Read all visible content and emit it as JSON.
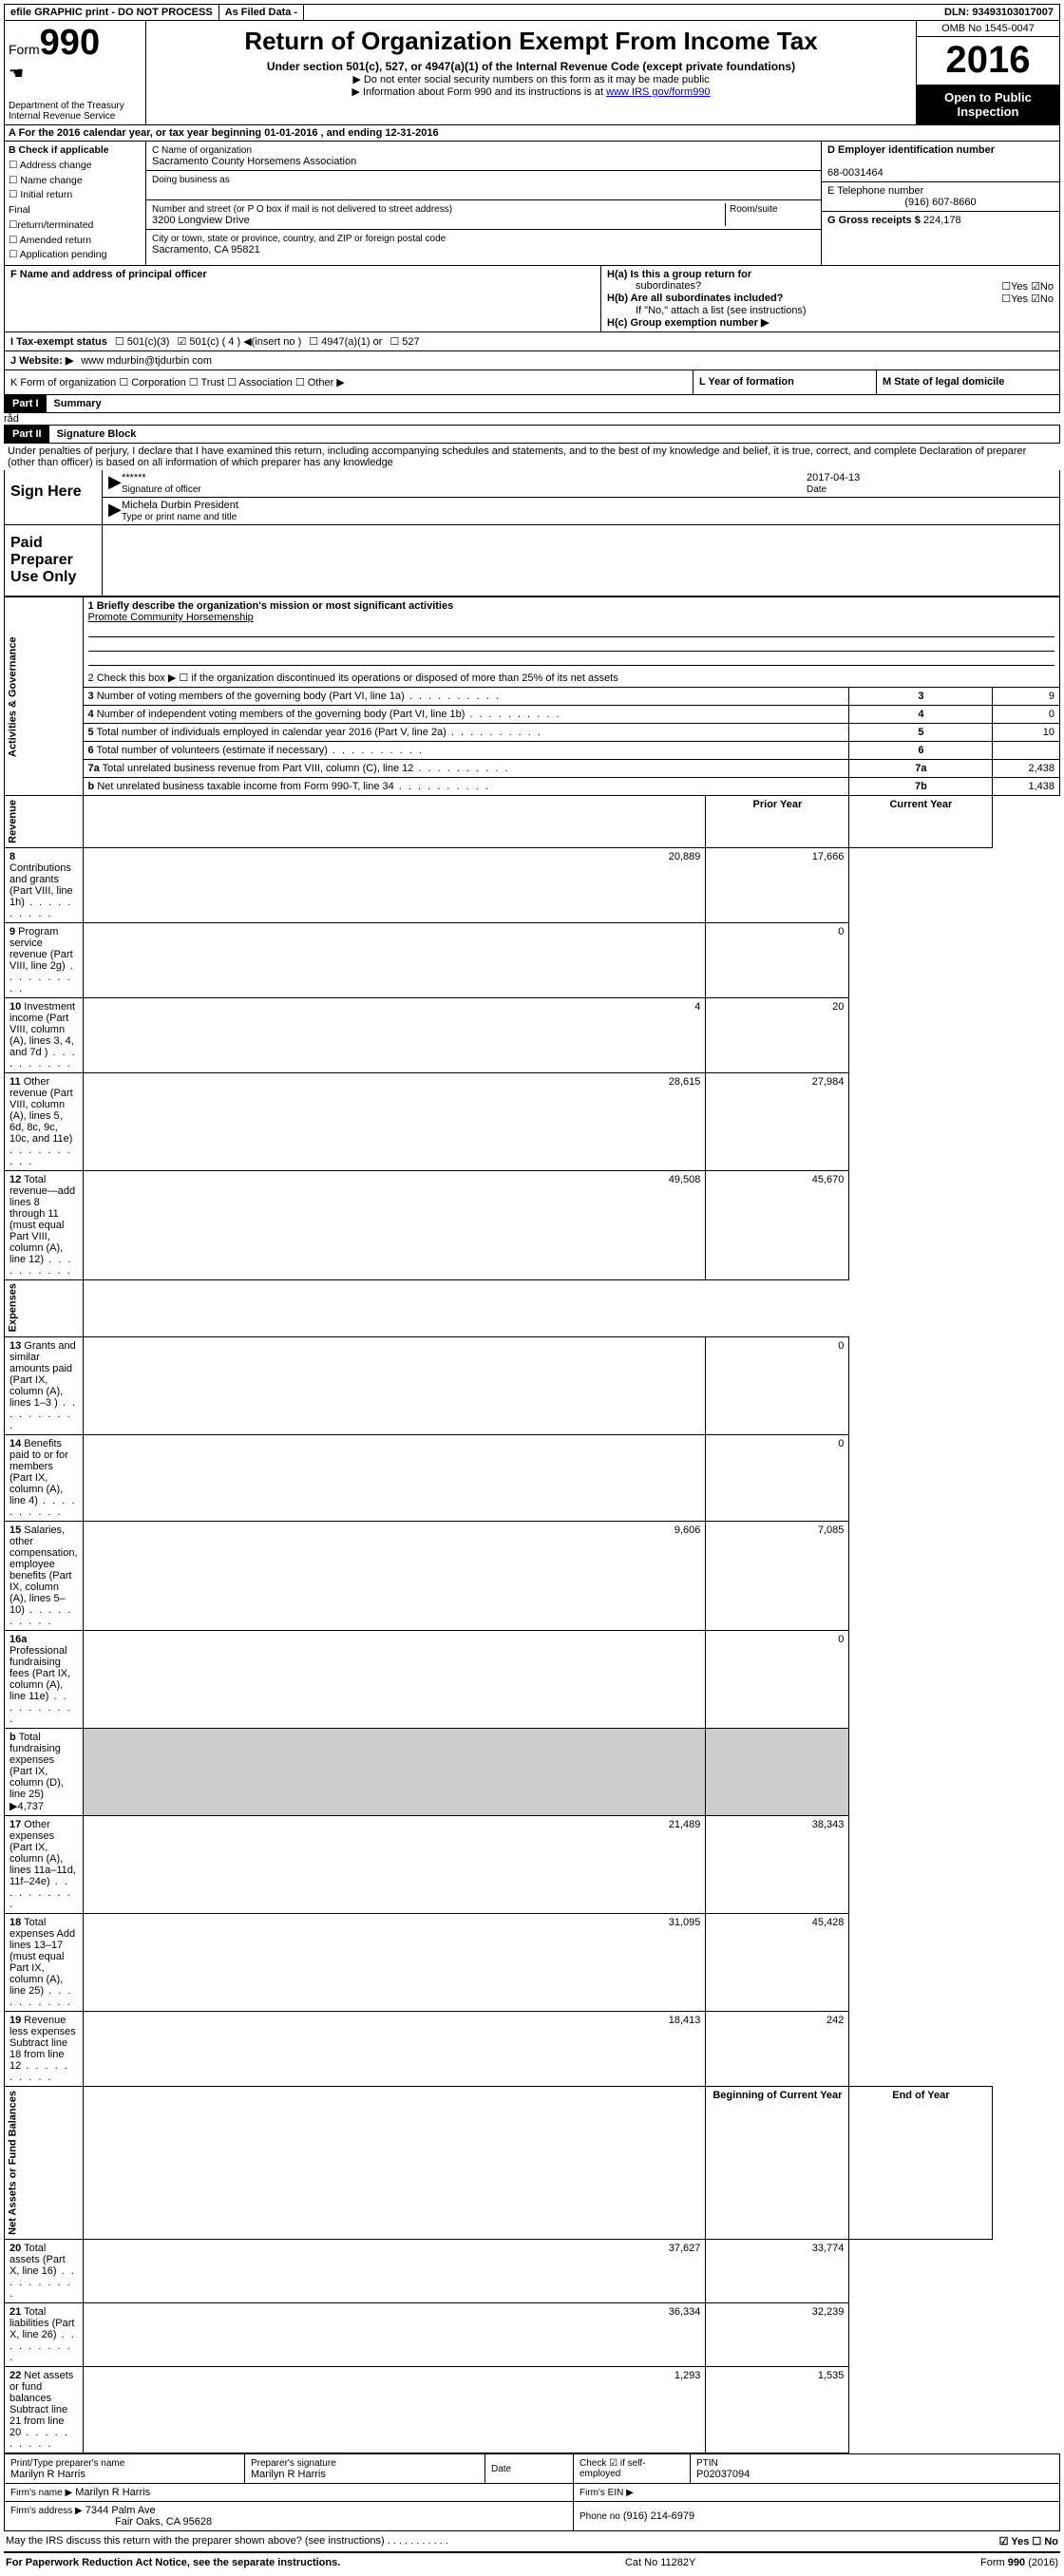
{
  "topbar": {
    "efile": "efile GRAPHIC print - DO NOT PROCESS",
    "asfiled": "As Filed Data -",
    "dln_label": "DLN:",
    "dln": "93493103017007"
  },
  "header": {
    "form_prefix": "Form",
    "form_no": "990",
    "dept1": "Department of the Treasury",
    "dept2": "Internal Revenue Service",
    "title": "Return of Organization Exempt From Income Tax",
    "subtitle": "Under section 501(c), 527, or 4947(a)(1) of the Internal Revenue Code (except private foundations)",
    "note1": "▶ Do not enter social security numbers on this form as it may be made public",
    "note2_pre": "▶ Information about Form 990 and its instructions is at ",
    "note2_link": "www IRS gov/form990",
    "omb": "OMB No  1545-0047",
    "year": "2016",
    "inspect1": "Open to Public",
    "inspect2": "Inspection"
  },
  "rowA": {
    "text": "A  For the 2016 calendar year, or tax year beginning 01-01-2016   , and ending 12-31-2016"
  },
  "secB": {
    "hdr": "B Check if applicable",
    "c1": "☐ Address change",
    "c2": "☐ Name change",
    "c3": "☐ Initial return",
    "c4": "   Final",
    "c4b": "☐return/terminated",
    "c5": "☐ Amended return",
    "c6": "☐ Application pending",
    "c_lbl": "C Name of organization",
    "c_val": "Sacramento County Horsemens Association",
    "dba_lbl": "Doing business as",
    "addr_lbl": "Number and street (or P O  box if mail is not delivered to street address)",
    "room_lbl": "Room/suite",
    "addr_val": "3200 Longview Drive",
    "city_lbl": "City or town, state or province, country, and ZIP or foreign postal code",
    "city_val": "Sacramento, CA  95821",
    "d_lbl": "D Employer identification number",
    "d_val": "68-0031464",
    "e_lbl": "E Telephone number",
    "e_val": "(916) 607-8660",
    "g_lbl": "G Gross receipts $",
    "g_val": "224,178"
  },
  "rowF": {
    "f_lbl": "F  Name and address of principal officer",
    "ha": "H(a)  Is this a group return for",
    "ha2": "subordinates?",
    "ha_ans": "☐Yes ☑No",
    "hb": "H(b) Are all subordinates included?",
    "hb_ans": "☐Yes ☑No",
    "hb_note": "If \"No,\" attach a list  (see instructions)",
    "hc": "H(c)  Group exemption number ▶"
  },
  "rowI": {
    "lbl": "I   Tax-exempt status",
    "o1": "☐ 501(c)(3)",
    "o2": "☑ 501(c) ( 4 ) ◀(insert no )",
    "o3": "☐ 4947(a)(1) or",
    "o4": "☐ 527"
  },
  "rowJ": {
    "lbl": "J   Website: ▶",
    "val": "www mdurbin@tjdurbin com"
  },
  "rowK": {
    "k": "K Form of organization   ☐ Corporation  ☐ Trust  ☐ Association  ☐ Other ▶",
    "l": "L Year of formation",
    "m": "M State of legal domicile"
  },
  "part1": {
    "hdr": "Part I",
    "title": "Summary",
    "q1_lbl": "1 Briefly describe the organization's mission or most significant activities",
    "q1_val": "Promote Community Horsemenship",
    "q2": "2   Check this box ▶ ☐  if the organization discontinued its operations or disposed of more than 25% of its net assets",
    "rows_ag": [
      {
        "n": "3",
        "t": "Number of voting members of the governing body (Part VI, line 1a)",
        "ln": "3",
        "v": "9"
      },
      {
        "n": "4",
        "t": "Number of independent voting members of the governing body (Part VI, line 1b)",
        "ln": "4",
        "v": "0"
      },
      {
        "n": "5",
        "t": "Total number of individuals employed in calendar year 2016 (Part V, line 2a)",
        "ln": "5",
        "v": "10"
      },
      {
        "n": "6",
        "t": "Total number of volunteers (estimate if necessary)",
        "ln": "6",
        "v": ""
      },
      {
        "n": "7a",
        "t": "Total unrelated business revenue from Part VIII, column (C), line 12",
        "ln": "7a",
        "v": "2,438"
      },
      {
        "n": "b",
        "t": "Net unrelated business taxable income from Form 990-T, line 34",
        "ln": "7b",
        "v": "1,438"
      }
    ],
    "col_prior": "Prior Year",
    "col_curr": "Current Year",
    "col_beg": "Beginning of Current Year",
    "col_end": "End of Year",
    "rev_lbl": "Revenue",
    "exp_lbl": "Expenses",
    "ag_lbl": "Activities & Governance",
    "na_lbl": "Net Assets or Fund Balances",
    "rows_rev": [
      {
        "n": "8",
        "t": "Contributions and grants (Part VIII, line 1h)",
        "p": "20,889",
        "c": "17,666"
      },
      {
        "n": "9",
        "t": "Program service revenue (Part VIII, line 2g)",
        "p": "",
        "c": "0"
      },
      {
        "n": "10",
        "t": "Investment income (Part VIII, column (A), lines 3, 4, and 7d )",
        "p": "4",
        "c": "20"
      },
      {
        "n": "11",
        "t": "Other revenue (Part VIII, column (A), lines 5, 6d, 8c, 9c, 10c, and 11e)",
        "p": "28,615",
        "c": "27,984"
      },
      {
        "n": "12",
        "t": "Total revenue—add lines 8 through 11 (must equal Part VIII, column (A), line 12)",
        "p": "49,508",
        "c": "45,670"
      }
    ],
    "rows_exp": [
      {
        "n": "13",
        "t": "Grants and similar amounts paid (Part IX, column (A), lines 1–3 )",
        "p": "",
        "c": "0"
      },
      {
        "n": "14",
        "t": "Benefits paid to or for members (Part IX, column (A), line 4)",
        "p": "",
        "c": "0"
      },
      {
        "n": "15",
        "t": "Salaries, other compensation, employee benefits (Part IX, column (A), lines 5–10)",
        "p": "9,606",
        "c": "7,085"
      },
      {
        "n": "16a",
        "t": "Professional fundraising fees (Part IX, column (A), line 11e)",
        "p": "",
        "c": "0"
      },
      {
        "n": "b",
        "t": "Total fundraising expenses (Part IX, column (D), line 25) ▶4,737",
        "p": "—",
        "c": "—"
      },
      {
        "n": "17",
        "t": "Other expenses (Part IX, column (A), lines 11a–11d, 11f–24e)",
        "p": "21,489",
        "c": "38,343"
      },
      {
        "n": "18",
        "t": "Total expenses  Add lines 13–17 (must equal Part IX, column (A), line 25)",
        "p": "31,095",
        "c": "45,428"
      },
      {
        "n": "19",
        "t": "Revenue less expenses  Subtract line 18 from line 12",
        "p": "18,413",
        "c": "242"
      }
    ],
    "rows_na": [
      {
        "n": "20",
        "t": "Total assets (Part X, line 16)",
        "p": "37,627",
        "c": "33,774"
      },
      {
        "n": "21",
        "t": "Total liabilities (Part X, line 26)",
        "p": "36,334",
        "c": "32,239"
      },
      {
        "n": "22",
        "t": "Net assets or fund balances  Subtract line 21 from line 20",
        "p": "1,293",
        "c": "1,535"
      }
    ]
  },
  "part2": {
    "hdr": "Part II",
    "title": "Signature Block",
    "perjury": "Under penalties of perjury, I declare that I have examined this return, including accompanying schedules and statements, and to the best of my knowledge and belief, it is true, correct, and complete  Declaration of preparer (other than officer) is based on all information of which preparer has any knowledge",
    "sign_here": "Sign Here",
    "stars": "******",
    "sig_officer": "Signature of officer",
    "date_lbl": "Date",
    "date_val": "2017-04-13",
    "name_title": "Michela Durbin President",
    "type_name": "Type or print name and title",
    "paid": "Paid Preparer Use Only",
    "prep_name_lbl": "Print/Type preparer's name",
    "prep_name": "Marilyn R Harris",
    "prep_sig_lbl": "Preparer's signature",
    "prep_sig": "Marilyn R Harris",
    "prep_date_lbl": "Date",
    "check_lbl": "Check ☑ if self-employed",
    "ptin_lbl": "PTIN",
    "ptin": "P02037094",
    "firm_name_lbl": "Firm's name   ▶",
    "firm_name": "Marilyn R Harris",
    "firm_ein_lbl": "Firm's EIN ▶",
    "firm_addr_lbl": "Firm's address ▶",
    "firm_addr": "7344 Palm Ave",
    "firm_city": "Fair Oaks, CA  95628",
    "phone_lbl": "Phone no",
    "phone": "(916) 214-6979",
    "discuss": "May the IRS discuss this return with the preparer shown above? (see instructions)",
    "discuss_ans": "☑ Yes  ☐ No"
  },
  "footer": {
    "left": "For Paperwork Reduction Act Notice, see the separate instructions.",
    "mid": "Cat  No  11282Y",
    "right": "Form 990 (2016)"
  }
}
